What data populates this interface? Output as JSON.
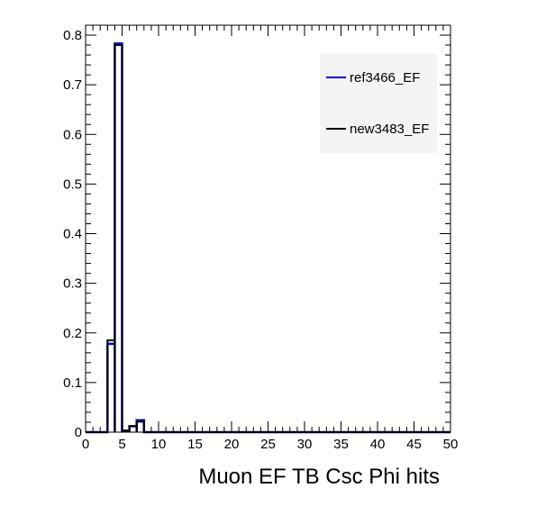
{
  "chart_data": {
    "type": "histogram",
    "title": "",
    "xlabel": "Muon EF TB Csc Phi hits",
    "ylabel": "",
    "xlim": [
      0,
      50
    ],
    "ylim": [
      0,
      0.82
    ],
    "bin_width": 1,
    "x_ticks": [
      0,
      5,
      10,
      15,
      20,
      25,
      30,
      35,
      40,
      45,
      50
    ],
    "x_tick_labels": [
      "0",
      "5",
      "10",
      "15",
      "20",
      "25",
      "30",
      "35",
      "40",
      "45",
      "50"
    ],
    "y_ticks": [
      0,
      0.1,
      0.2,
      0.3,
      0.4,
      0.5,
      0.6,
      0.7,
      0.8
    ],
    "y_tick_labels": [
      "0",
      "0.1",
      "0.2",
      "0.3",
      "0.4",
      "0.5",
      "0.6",
      "0.7",
      "0.8"
    ],
    "legend_position": "top-right",
    "series": [
      {
        "name": "ref3466_EF",
        "color": "#0000cc",
        "bin_edges": [
          0,
          1,
          2,
          3,
          4,
          5,
          6,
          7,
          8,
          9,
          10
        ],
        "values": [
          0,
          0,
          0,
          0.178,
          0.783,
          0.003,
          0.012,
          0.024,
          0,
          0
        ]
      },
      {
        "name": "new3483_EF",
        "color": "#000000",
        "bin_edges": [
          0,
          1,
          2,
          3,
          4,
          5,
          6,
          7,
          8,
          9,
          10
        ],
        "values": [
          0,
          0,
          0,
          0.185,
          0.78,
          0.003,
          0.012,
          0.021,
          0,
          0
        ]
      }
    ]
  }
}
